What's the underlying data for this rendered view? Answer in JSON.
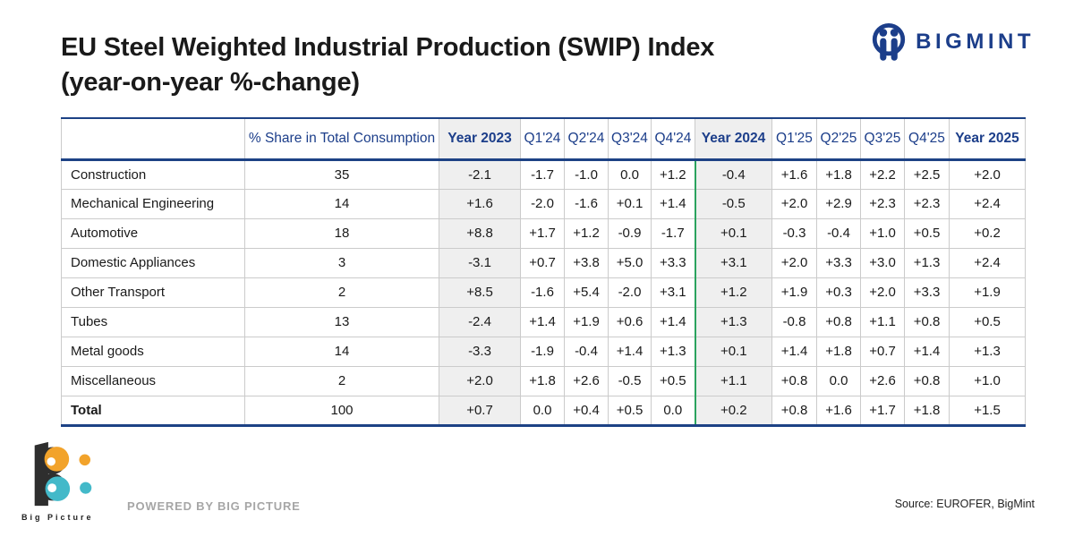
{
  "page": {
    "title_line1": "EU Steel Weighted Industrial Production (SWIP) Index",
    "title_line2": "(year-on-year %-change)"
  },
  "brand": {
    "name": "BIGMINT"
  },
  "chart_data": {
    "type": "table",
    "title": "EU Steel Weighted Industrial Production (SWIP) Index (year-on-year %-change)",
    "columns": [
      "",
      "% Share in Total Consumption",
      "Year 2023",
      "Q1'24",
      "Q2'24",
      "Q3'24",
      "Q4'24",
      "Year 2024",
      "Q1'25",
      "Q2'25",
      "Q3'25",
      "Q4'25",
      "Year 2025"
    ],
    "year_column_indexes": [
      2,
      7,
      12
    ],
    "shaded_column_indexes": [
      2,
      7
    ],
    "green_divider_column_index": 7,
    "rows": [
      {
        "label": "Construction",
        "bold": false,
        "values": [
          "35",
          "-2.1",
          "-1.7",
          "-1.0",
          "0.0",
          "+1.2",
          "-0.4",
          "+1.6",
          "+1.8",
          "+2.2",
          "+2.5",
          "+2.0"
        ]
      },
      {
        "label": "Mechanical Engineering",
        "bold": false,
        "values": [
          "14",
          "+1.6",
          "-2.0",
          "-1.6",
          "+0.1",
          "+1.4",
          "-0.5",
          "+2.0",
          "+2.9",
          "+2.3",
          "+2.3",
          "+2.4"
        ]
      },
      {
        "label": "Automotive",
        "bold": false,
        "values": [
          "18",
          "+8.8",
          "+1.7",
          "+1.2",
          "-0.9",
          "-1.7",
          "+0.1",
          "-0.3",
          "-0.4",
          "+1.0",
          "+0.5",
          "+0.2"
        ]
      },
      {
        "label": "Domestic Appliances",
        "bold": false,
        "values": [
          "3",
          "-3.1",
          "+0.7",
          "+3.8",
          "+5.0",
          "+3.3",
          "+3.1",
          "+2.0",
          "+3.3",
          "+3.0",
          "+1.3",
          "+2.4"
        ]
      },
      {
        "label": "Other Transport",
        "bold": false,
        "values": [
          "2",
          "+8.5",
          "-1.6",
          "+5.4",
          "-2.0",
          "+3.1",
          "+1.2",
          "+1.9",
          "+0.3",
          "+2.0",
          "+3.3",
          "+1.9"
        ]
      },
      {
        "label": "Tubes",
        "bold": false,
        "values": [
          "13",
          "-2.4",
          "+1.4",
          "+1.9",
          "+0.6",
          "+1.4",
          "+1.3",
          "-0.8",
          "+0.8",
          "+1.1",
          "+0.8",
          "+0.5"
        ]
      },
      {
        "label": "Metal goods",
        "bold": false,
        "values": [
          "14",
          "-3.3",
          "-1.9",
          "-0.4",
          "+1.4",
          "+1.3",
          "+0.1",
          "+1.4",
          "+1.8",
          "+0.7",
          "+1.4",
          "+1.3"
        ]
      },
      {
        "label": "Miscellaneous",
        "bold": false,
        "values": [
          "2",
          "+2.0",
          "+1.8",
          "+2.6",
          "-0.5",
          "+0.5",
          "+1.1",
          "+0.8",
          "0.0",
          "+2.6",
          "+0.8",
          "+1.0"
        ]
      },
      {
        "label": "Total",
        "bold": true,
        "values": [
          "100",
          "+0.7",
          "0.0",
          "+0.4",
          "+0.5",
          "0.0",
          "+0.2",
          "+0.8",
          "+1.6",
          "+1.7",
          "+1.8",
          "+1.5"
        ]
      }
    ],
    "positive_color": "#23a259",
    "negative_color": "#d9382e",
    "header_text_color": "#1c3e8a",
    "table_border_color": "#1d4285",
    "shade_color": "#efefef",
    "green_divider_color": "#2ba35e"
  },
  "footer": {
    "logo_text": "Big Picture",
    "powered_by": "POWERED BY BIG PICTURE",
    "source": "Source: EUROFER, BigMint"
  }
}
